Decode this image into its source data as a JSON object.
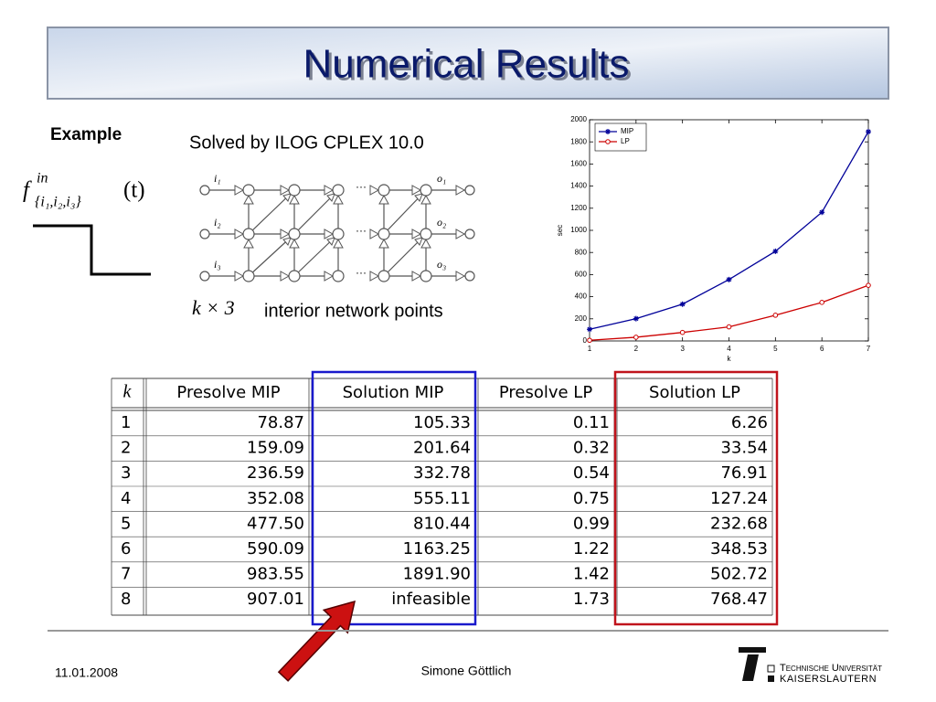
{
  "title": "Numerical Results",
  "example": "Example",
  "solver": "Solved by ILOG CPLEX 10.0",
  "formula": {
    "base": "f",
    "sup": "in",
    "sub": "{i₁,i₂,i₃}",
    "arg": "(t)"
  },
  "network": {
    "inputs": [
      "i₁",
      "i₂",
      "i₃"
    ],
    "outputs": [
      "o₁",
      "o₂",
      "o₃"
    ],
    "dots": "···",
    "size": "k × 3",
    "caption": "interior network points"
  },
  "chart_data": {
    "type": "line",
    "xlabel": "k",
    "ylabel": "sec",
    "x": [
      1,
      2,
      3,
      4,
      5,
      6,
      7
    ],
    "series": [
      {
        "name": "MIP",
        "color": "#000099",
        "marker": "star",
        "values": [
          105.33,
          201.64,
          332.78,
          555.11,
          810.44,
          1163.25,
          1891.9
        ]
      },
      {
        "name": "LP",
        "color": "#cc0000",
        "marker": "circle",
        "values": [
          6.26,
          33.54,
          76.91,
          127.24,
          232.68,
          348.53,
          502.72
        ]
      }
    ],
    "xlim": [
      1,
      7
    ],
    "xticks": [
      1,
      2,
      3,
      4,
      5,
      6,
      7
    ],
    "ylim": [
      0,
      2000
    ],
    "yticks": [
      0,
      200,
      400,
      600,
      800,
      1000,
      1200,
      1400,
      1600,
      1800,
      2000
    ],
    "legend": "upper left",
    "grid": false
  },
  "table": {
    "header": [
      "k",
      "Presolve MIP",
      "Solution MIP",
      "Presolve LP",
      "Solution LP"
    ],
    "rows": [
      [
        "1",
        "78.87",
        "105.33",
        "0.11",
        "6.26"
      ],
      [
        "2",
        "159.09",
        "201.64",
        "0.32",
        "33.54"
      ],
      [
        "3",
        "236.59",
        "332.78",
        "0.54",
        "76.91"
      ],
      [
        "4",
        "352.08",
        "555.11",
        "0.75",
        "127.24"
      ],
      [
        "5",
        "477.50",
        "810.44",
        "0.99",
        "232.68"
      ],
      [
        "6",
        "590.09",
        "1163.25",
        "1.22",
        "348.53"
      ],
      [
        "7",
        "983.55",
        "1891.90",
        "1.42",
        "502.72"
      ],
      [
        "8",
        "907.01",
        "infeasible",
        "1.73",
        "768.47"
      ]
    ]
  },
  "footer": {
    "date": "11.01.2008",
    "author": "Simone Göttlich",
    "university": "Technische Universität",
    "city": "KAISERSLAUTERN"
  }
}
